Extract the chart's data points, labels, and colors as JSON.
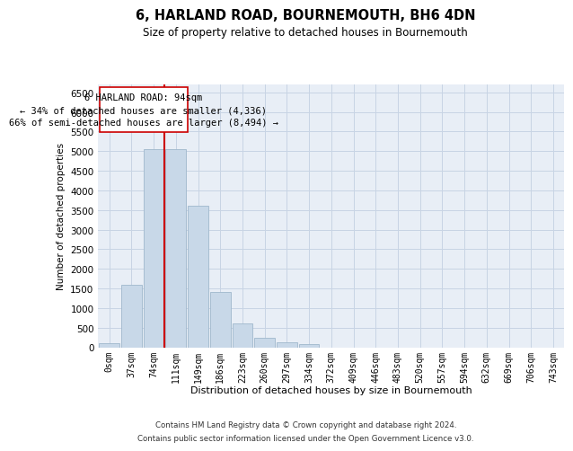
{
  "title": "6, HARLAND ROAD, BOURNEMOUTH, BH6 4DN",
  "subtitle": "Size of property relative to detached houses in Bournemouth",
  "xlabel": "Distribution of detached houses by size in Bournemouth",
  "ylabel": "Number of detached properties",
  "bar_color": "#c8d8e8",
  "bar_edge_color": "#a0b8cc",
  "grid_color": "#c8d4e4",
  "background_color": "#e8eef6",
  "vline_color": "#cc0000",
  "vline_pos": 2.5,
  "annotation_text": "6 HARLAND ROAD: 94sqm\n← 34% of detached houses are smaller (4,336)\n66% of semi-detached houses are larger (8,494) →",
  "annotation_box_color": "#ffffff",
  "annotation_box_edge": "#cc0000",
  "categories": [
    "0sqm",
    "37sqm",
    "74sqm",
    "111sqm",
    "149sqm",
    "186sqm",
    "223sqm",
    "260sqm",
    "297sqm",
    "334sqm",
    "372sqm",
    "409sqm",
    "446sqm",
    "483sqm",
    "520sqm",
    "557sqm",
    "594sqm",
    "632sqm",
    "669sqm",
    "706sqm",
    "743sqm"
  ],
  "values": [
    100,
    1600,
    5050,
    5050,
    3600,
    1400,
    600,
    250,
    120,
    80,
    0,
    0,
    0,
    0,
    0,
    0,
    0,
    0,
    0,
    0,
    0
  ],
  "ylim": [
    0,
    6700
  ],
  "yticks": [
    0,
    500,
    1000,
    1500,
    2000,
    2500,
    3000,
    3500,
    4000,
    4500,
    5000,
    5500,
    6000,
    6500
  ],
  "footer_line1": "Contains HM Land Registry data © Crown copyright and database right 2024.",
  "footer_line2": "Contains public sector information licensed under the Open Government Licence v3.0."
}
